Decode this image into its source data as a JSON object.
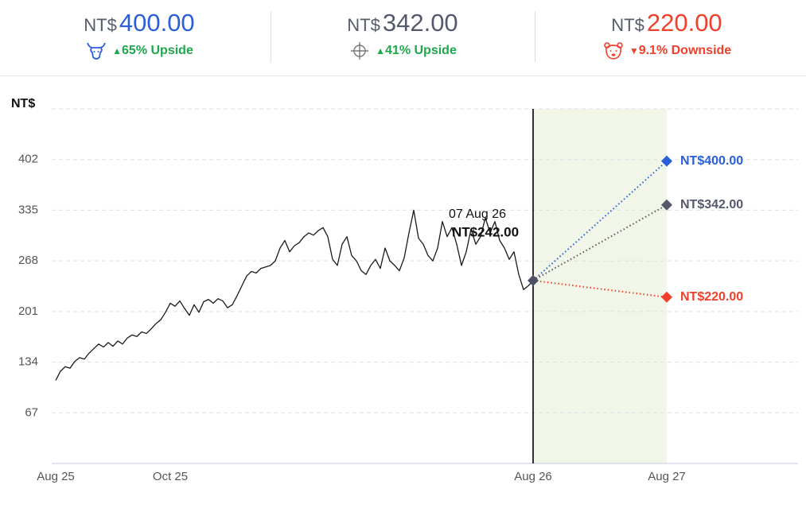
{
  "header": {
    "targets": [
      {
        "currency": "NT$",
        "price": "400.00",
        "change": "65% Upside",
        "price_color": "#2b5fd9",
        "change_color": "#1ea84b"
      },
      {
        "currency": "NT$",
        "price": "342.00",
        "change": "41% Upside",
        "price_color": "#545a6b",
        "change_color": "#1ea84b"
      },
      {
        "currency": "NT$",
        "price": "220.00",
        "change": "9.1% Downside",
        "price_color": "#f0402b",
        "change_color": "#f0402b"
      }
    ]
  },
  "chart_data": {
    "type": "line",
    "y_label": "NT$",
    "color": "#1a1a1a",
    "ylim": [
      0,
      469
    ],
    "yticks": [
      67,
      134,
      201,
      268,
      335,
      402
    ],
    "grid": true,
    "categories": [
      "Aug 25",
      null,
      null,
      null,
      null,
      null,
      null,
      null,
      null,
      null,
      null,
      null,
      null,
      null,
      null,
      null,
      null,
      null,
      null,
      null,
      null,
      null,
      null,
      null,
      "Oct 25",
      null,
      null,
      null,
      null,
      null,
      null,
      null,
      null,
      null,
      null,
      null,
      null,
      null,
      null,
      null,
      null,
      null,
      null,
      null,
      null,
      null,
      null,
      null,
      null,
      null,
      null,
      null,
      null,
      null,
      null,
      null,
      null,
      null,
      null,
      null,
      null,
      null,
      null,
      null,
      null,
      null,
      null,
      null,
      null,
      null,
      null,
      null,
      null,
      null,
      null,
      null,
      null,
      null,
      null,
      null,
      null,
      null,
      null,
      null,
      null,
      null,
      null,
      null,
      null,
      null,
      null,
      null,
      null,
      null,
      null,
      null,
      null,
      null,
      null,
      null,
      "Aug 26",
      null,
      null,
      null,
      null,
      null,
      null,
      null,
      null,
      null,
      null,
      null,
      null,
      null,
      null,
      null,
      null,
      null,
      null,
      null,
      null,
      null,
      null,
      null,
      null,
      null,
      null,
      null,
      "Aug 27"
    ],
    "values": [
      110,
      122,
      128,
      126,
      135,
      140,
      138,
      146,
      152,
      158,
      154,
      160,
      155,
      162,
      158,
      166,
      170,
      168,
      174,
      172,
      178,
      185,
      190,
      200,
      212,
      208,
      215,
      205,
      196,
      210,
      200,
      214,
      217,
      212,
      218,
      215,
      206,
      210,
      222,
      235,
      248,
      254,
      252,
      258,
      260,
      262,
      268,
      285,
      295,
      280,
      288,
      292,
      300,
      305,
      302,
      308,
      312,
      300,
      270,
      262,
      290,
      300,
      275,
      268,
      255,
      250,
      262,
      270,
      258,
      285,
      268,
      262,
      255,
      272,
      305,
      335,
      298,
      290,
      275,
      268,
      285,
      320,
      300,
      312,
      290,
      262,
      280,
      310,
      290,
      300,
      325,
      305,
      320,
      295,
      285,
      270,
      280,
      250,
      230,
      235,
      242,
      null,
      null,
      null,
      null,
      null,
      null,
      null,
      null,
      null,
      null,
      null,
      null,
      null,
      null,
      null,
      null,
      null,
      null,
      null,
      null,
      null,
      null,
      null,
      null,
      null,
      null,
      null,
      null
    ],
    "annotation": {
      "date": "07 Aug 26",
      "label": "NT$242.00"
    },
    "current_color": "#4d5263",
    "forecast_fill": "#f1f6e8",
    "targets": [
      {
        "value": 400,
        "value_label": "NT$400.00",
        "color": "#2b5fd9"
      },
      {
        "value": 342,
        "value_label": "NT$342.00",
        "color": "#545a6b"
      },
      {
        "value": 220,
        "value_label": "NT$220.00",
        "color": "#f0402b"
      }
    ]
  }
}
